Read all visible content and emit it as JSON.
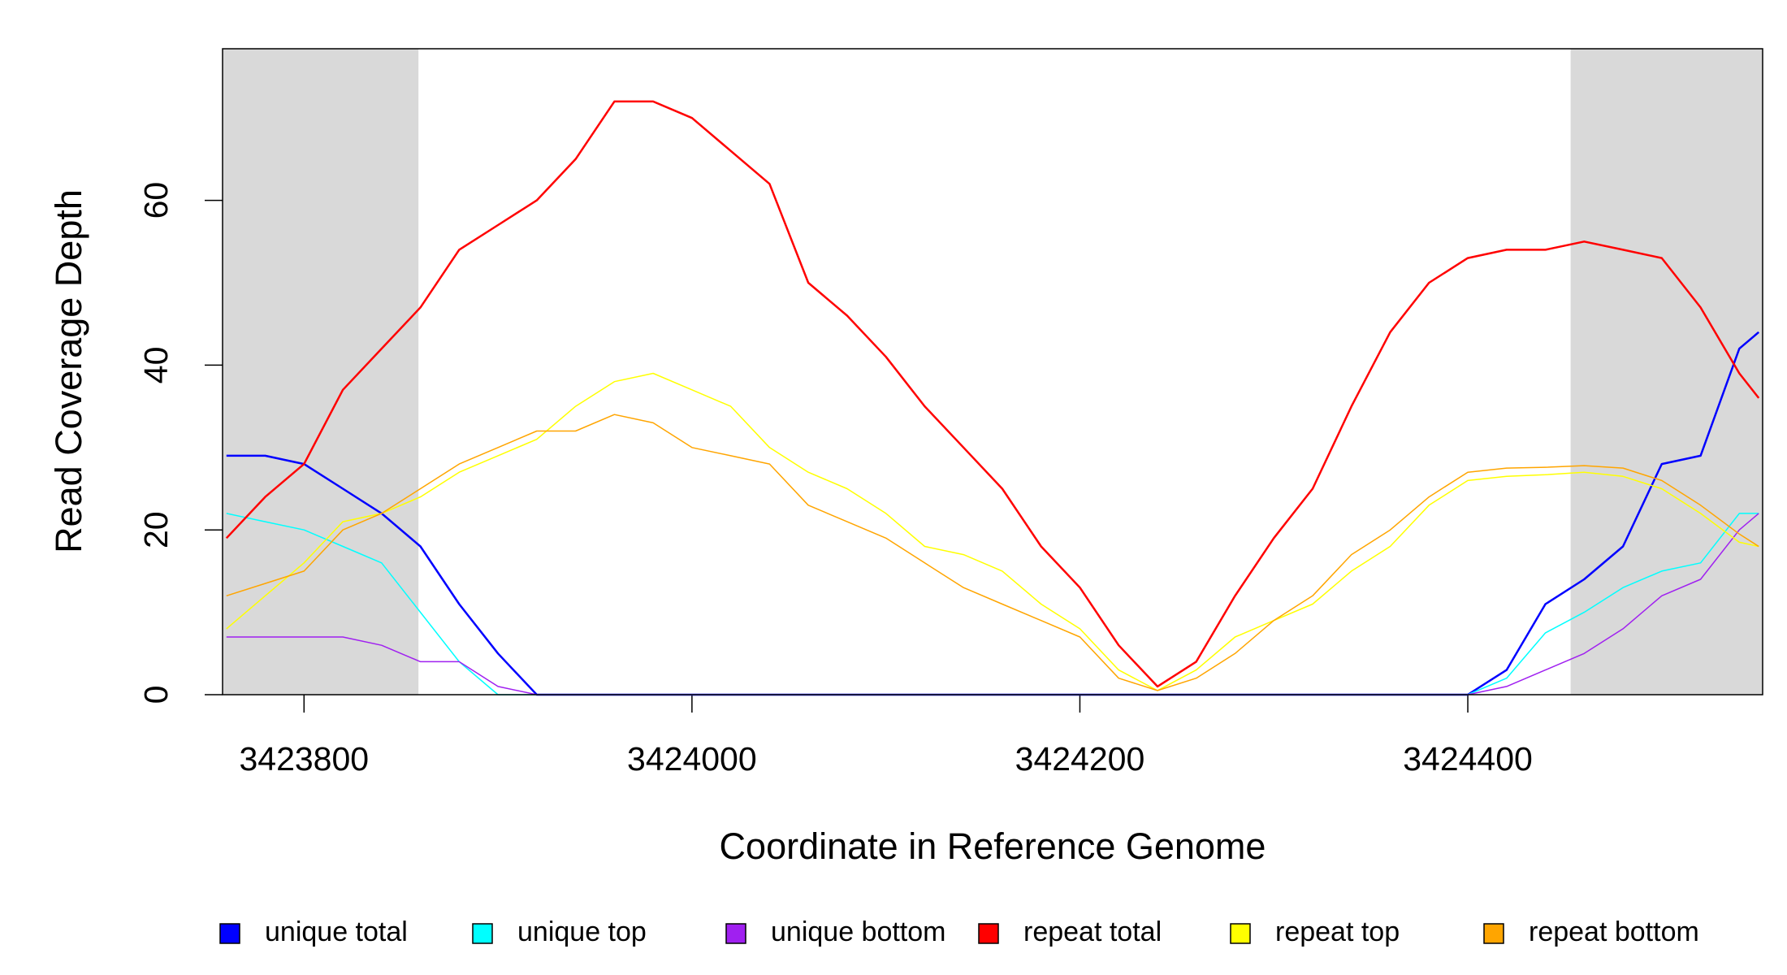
{
  "chart_data": {
    "type": "line",
    "xlabel": "Coordinate in Reference Genome",
    "ylabel": "Read Coverage Depth",
    "x": [
      3423760,
      3423780,
      3423800,
      3423820,
      3423840,
      3423860,
      3423880,
      3423900,
      3423920,
      3423940,
      3423960,
      3423980,
      3424000,
      3424020,
      3424040,
      3424060,
      3424080,
      3424100,
      3424120,
      3424140,
      3424160,
      3424180,
      3424200,
      3424220,
      3424240,
      3424260,
      3424280,
      3424300,
      3424320,
      3424340,
      3424360,
      3424380,
      3424400,
      3424420,
      3424440,
      3424460,
      3424480,
      3424500,
      3424520,
      3424540,
      3424550
    ],
    "series": [
      {
        "name": "unique total",
        "color": "#0000ff",
        "width": 2.5,
        "values": [
          29,
          29,
          28,
          25,
          22,
          18,
          11,
          5,
          0,
          0,
          0,
          0,
          0,
          0,
          0,
          0,
          0,
          0,
          0,
          0,
          0,
          0,
          0,
          0,
          0,
          0,
          0,
          0,
          0,
          0,
          0,
          0,
          0,
          3,
          11,
          14,
          18,
          28,
          29,
          42,
          44
        ]
      },
      {
        "name": "unique top",
        "color": "#00ffff",
        "width": 1.5,
        "values": [
          22,
          21,
          20,
          18,
          16,
          10,
          4,
          0,
          0,
          0,
          0,
          0,
          0,
          0,
          0,
          0,
          0,
          0,
          0,
          0,
          0,
          0,
          0,
          0,
          0,
          0,
          0,
          0,
          0,
          0,
          0,
          0,
          0,
          2,
          7.5,
          10,
          13,
          15,
          16,
          22,
          22
        ]
      },
      {
        "name": "unique bottom",
        "color": "#a020f0",
        "width": 1.5,
        "values": [
          7,
          7,
          7,
          7,
          6,
          4,
          4,
          1,
          0,
          0,
          0,
          0,
          0,
          0,
          0,
          0,
          0,
          0,
          0,
          0,
          0,
          0,
          0,
          0,
          0,
          0,
          0,
          0,
          0,
          0,
          0,
          0,
          0,
          1,
          3,
          5,
          8,
          12,
          14,
          20,
          22
        ]
      },
      {
        "name": "repeat total",
        "color": "#ff0000",
        "width": 2.5,
        "values": [
          19,
          24,
          28,
          37,
          42,
          47,
          54,
          57,
          60,
          65,
          72,
          72,
          70,
          66,
          62,
          50,
          46,
          41,
          35,
          30,
          25,
          18,
          13,
          6,
          1,
          4,
          12,
          19,
          25,
          35,
          44,
          50,
          53,
          54,
          54,
          55,
          54,
          53,
          47,
          39,
          36
        ]
      },
      {
        "name": "repeat top",
        "color": "#ffff00",
        "width": 1.5,
        "values": [
          8,
          12,
          16,
          21,
          22,
          24,
          27,
          29,
          31,
          35,
          38,
          39,
          37,
          35,
          30,
          27,
          25,
          22,
          18,
          17,
          15,
          11,
          8,
          3,
          0.5,
          3,
          7,
          9,
          11,
          15,
          18,
          23,
          26,
          26.5,
          26.7,
          27,
          26.5,
          25,
          22,
          18.5,
          18
        ]
      },
      {
        "name": "repeat bottom",
        "color": "#ffa500",
        "width": 1.5,
        "values": [
          12,
          13.5,
          15,
          20,
          22,
          25,
          28,
          30,
          32,
          32,
          34,
          33,
          30,
          29,
          28,
          23,
          21,
          19,
          16,
          13,
          11,
          9,
          7,
          2,
          0.5,
          2,
          5,
          9,
          12,
          17,
          20,
          24,
          27,
          27.5,
          27.6,
          27.8,
          27.5,
          26,
          23,
          19.5,
          18
        ]
      }
    ],
    "shaded_regions": [
      [
        3423758,
        3423859
      ],
      [
        3424453,
        3424552
      ]
    ],
    "shade_color": "#d9d9d9",
    "xlim": [
      3423758,
      3424552
    ],
    "ylim": [
      0,
      78.4
    ],
    "xticks": [
      3423800,
      3424000,
      3424200,
      3424400
    ],
    "yticks": [
      0,
      20,
      40,
      60
    ],
    "legend": "bottom"
  }
}
